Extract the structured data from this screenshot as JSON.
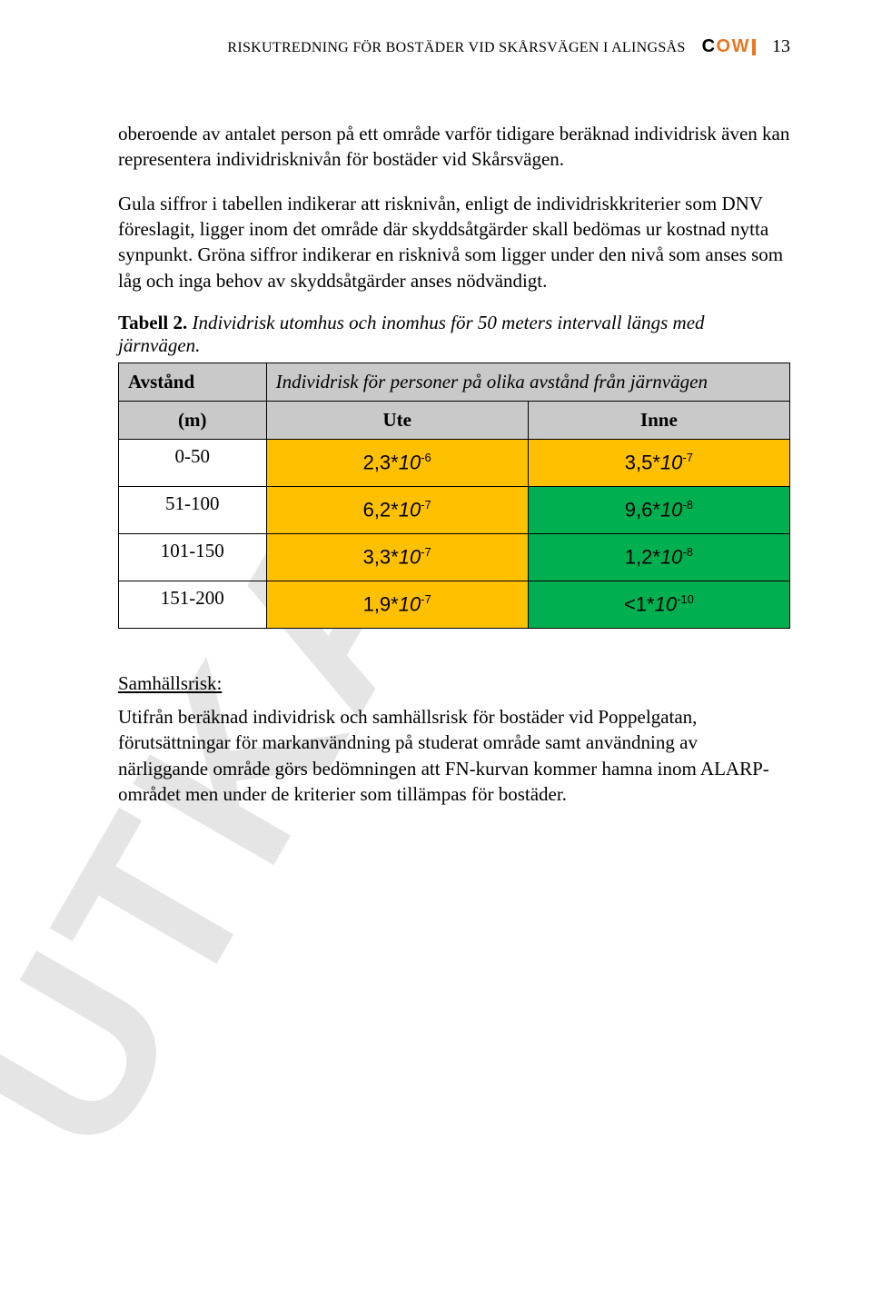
{
  "header": {
    "title": "RISKUTREDNING FÖR BOSTÄDER VID SKÅRSVÄGEN I ALINGSÅS",
    "logo": {
      "c": "C",
      "o": "O",
      "w": "W",
      "color": "#e87722"
    },
    "page_number": "13"
  },
  "paragraphs": {
    "p1": "oberoende av antalet person på ett område varför tidigare beräknad individrisk även kan representera individrisknivån för bostäder vid Skårsvägen.",
    "p2": "Gula siffror i tabellen indikerar att risknivån, enligt de individriskkriterier som DNV föreslagit, ligger inom det område där skyddsåtgärder skall bedömas ur kostnad nytta synpunkt. Gröna siffror indikerar en risknivå som ligger under den nivå som anses som låg och inga behov av skyddsåtgärder anses nödvändigt.",
    "caption_bold": "Tabell 2.",
    "caption_rest": "Individrisk utomhus och inomhus för 50 meters intervall längs med järnvägen.",
    "section_title": "Samhällsrisk:",
    "p3": "Utifrån beräknad individrisk och samhällsrisk för bostäder vid Poppelgatan, förutsättningar för markanvändning på studerat område samt användning av närliggande område görs bedömningen att FN-kurvan kommer hamna inom ALARP-området men under de kriterier som tillämpas för bostäder."
  },
  "table": {
    "header_left": "Avstånd",
    "header_right": "Individrisk för personer på olika avstånd från järnvägen",
    "sub_m": "(m)",
    "sub_ute": "Ute",
    "sub_inne": "Inne",
    "colors": {
      "yellow": "#ffc000",
      "green": "#00b050",
      "header_bg": "#c9c9c9"
    },
    "col_widths": {
      "dist": "22%",
      "ute": "39%",
      "inne": "39%"
    },
    "rows": [
      {
        "dist": "0-50",
        "ute_m": "2,3*",
        "ute_e": "-6",
        "ute_c": "yellow",
        "inne_m": "3,5*",
        "inne_e": "-7",
        "inne_c": "yellow"
      },
      {
        "dist": "51-100",
        "ute_m": "6,2*",
        "ute_e": "-7",
        "ute_c": "yellow",
        "inne_m": "9,6*",
        "inne_e": "-8",
        "inne_c": "green"
      },
      {
        "dist": "101-150",
        "ute_m": "3,3*",
        "ute_e": "-7",
        "ute_c": "yellow",
        "inne_m": "1,2*",
        "inne_e": "-8",
        "inne_c": "green"
      },
      {
        "dist": "151-200",
        "ute_m": "1,9*",
        "ute_e": "-7",
        "ute_c": "yellow",
        "inne_m": "<1*",
        "inne_e": "-10",
        "inne_c": "green"
      }
    ]
  },
  "watermark": "UTKAS"
}
